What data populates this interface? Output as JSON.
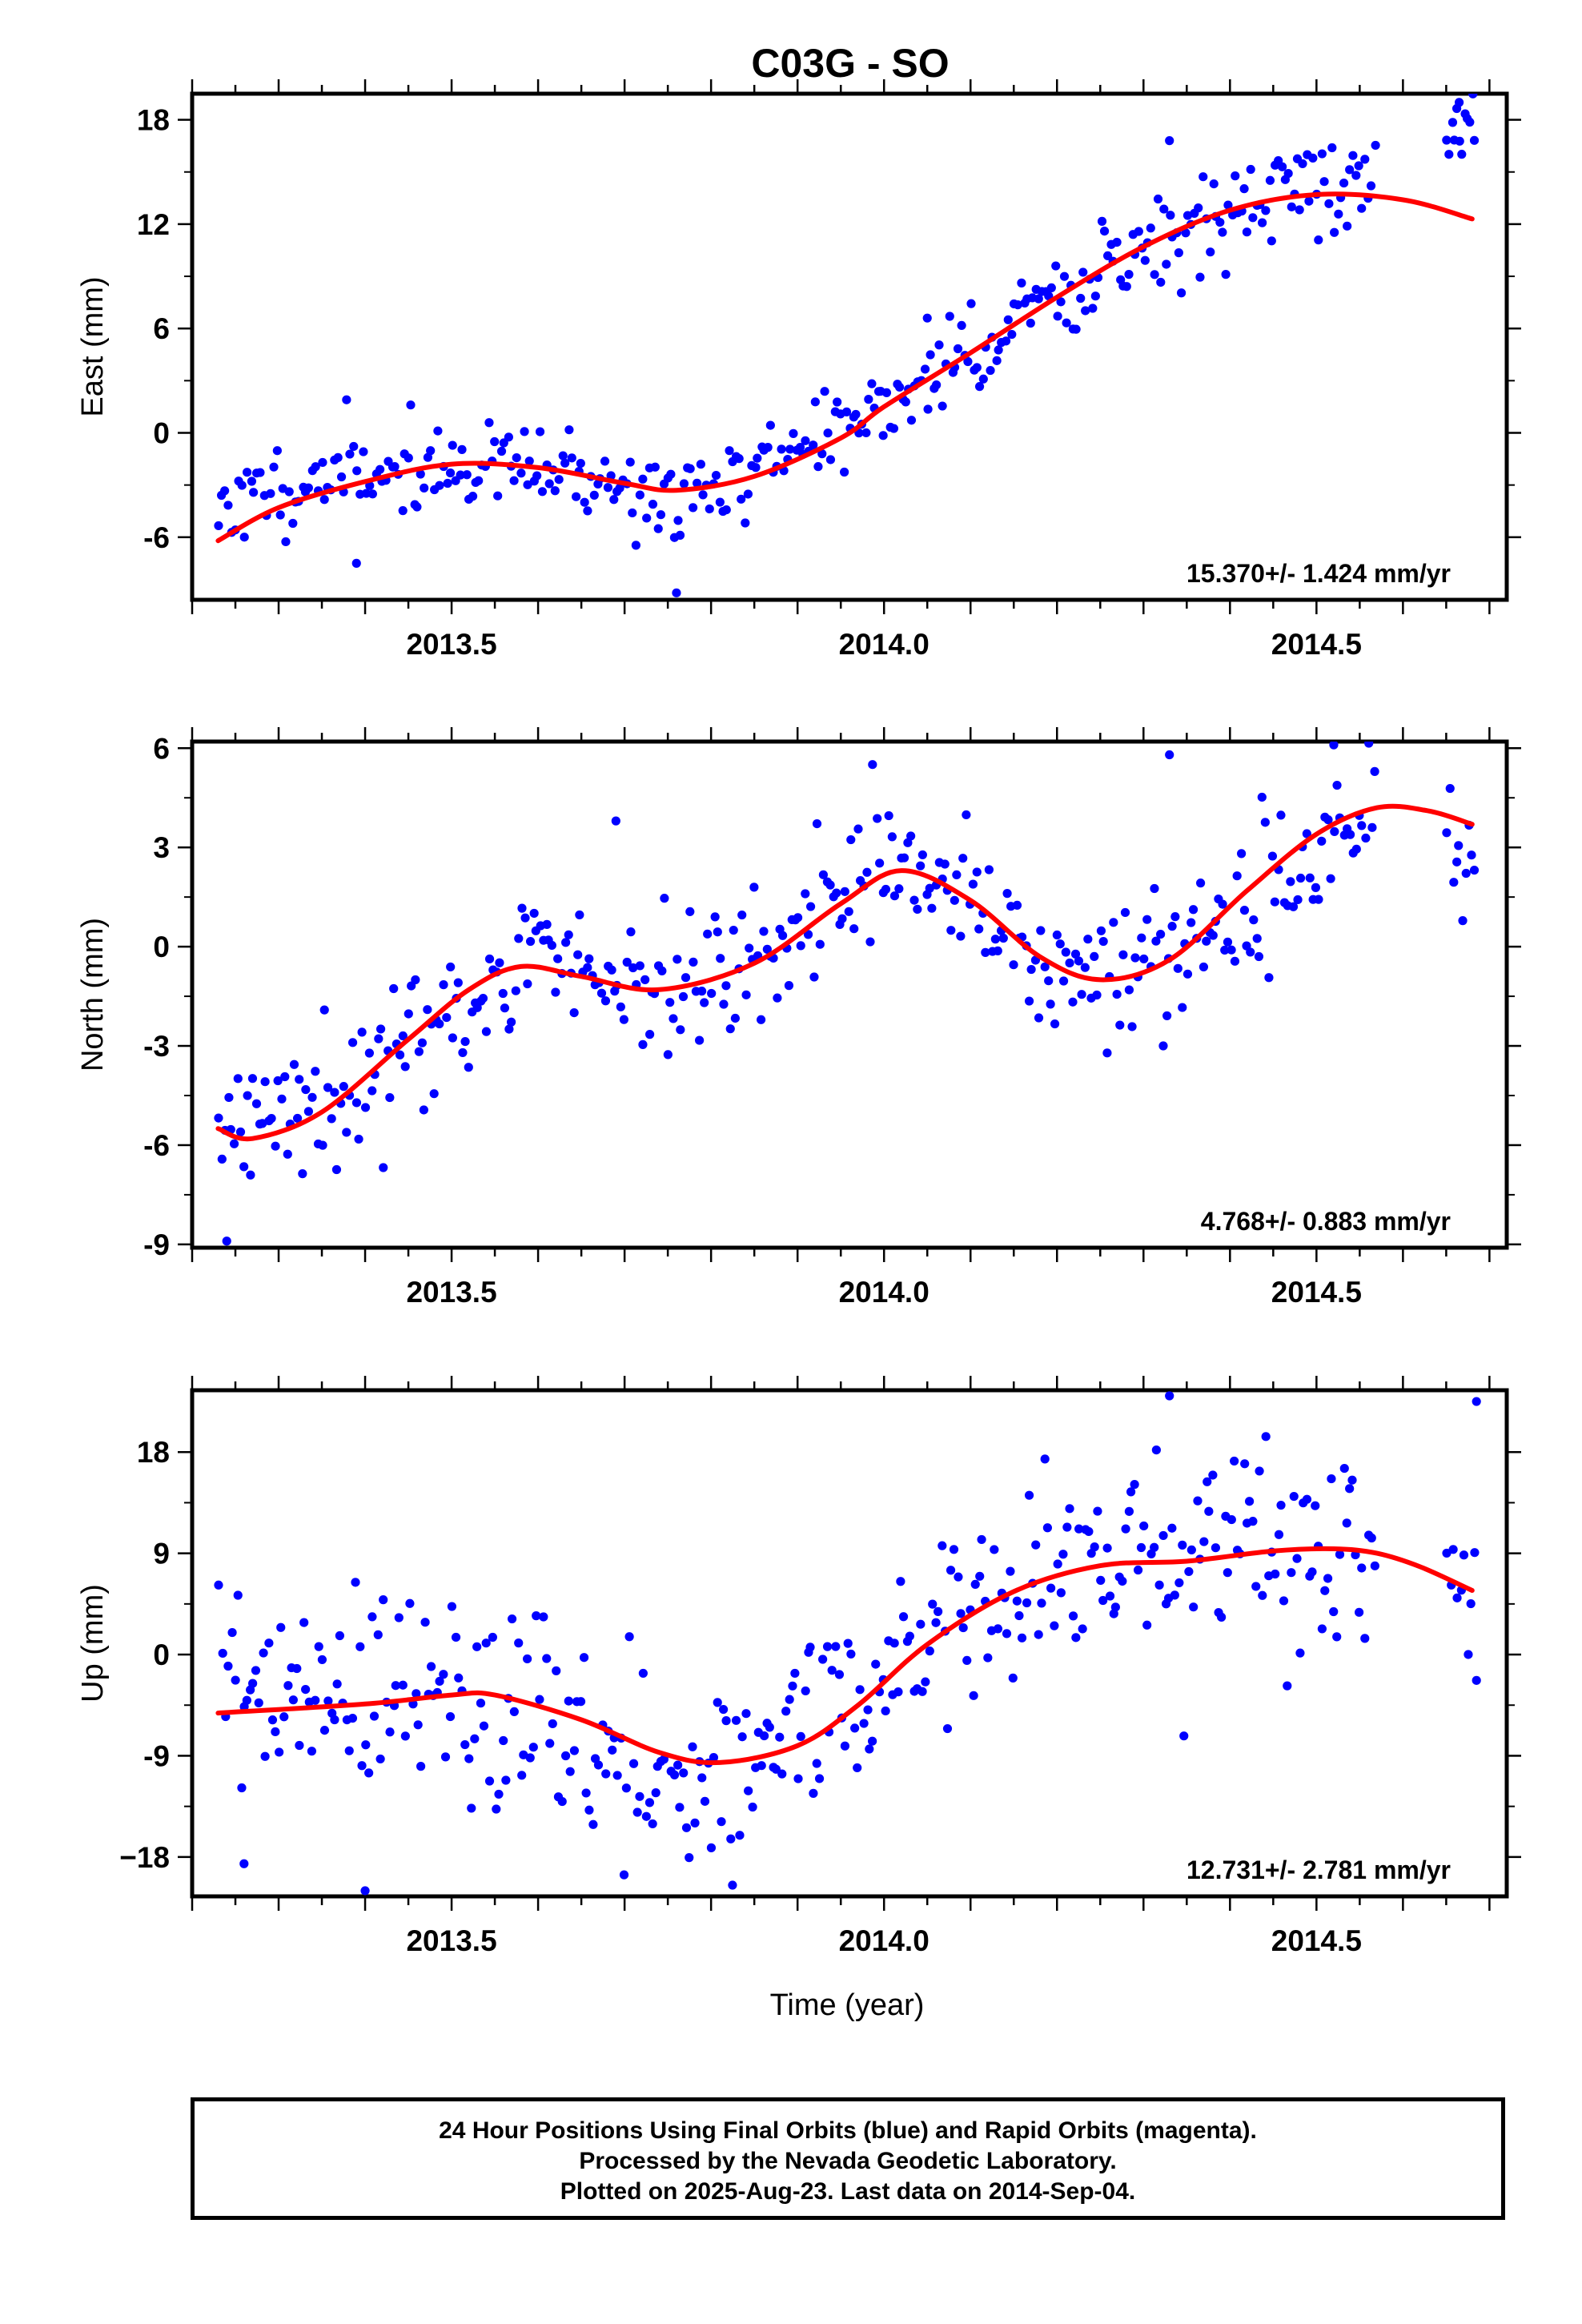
{
  "chart_data": {
    "title": "C03G - SO",
    "x_label": "Time (year)",
    "x_ticks": [
      2013.5,
      2014.0,
      2014.5
    ],
    "x_tick_labels": [
      "2013.5",
      "2014.0",
      "2014.5"
    ],
    "x_range": [
      2013.2,
      2014.72
    ],
    "series_colors": {
      "data": "#0000ff",
      "model": "#ff0000"
    },
    "panels": [
      {
        "name": "east",
        "type": "scatter",
        "ylabel": "East (mm)",
        "ylim": [
          -9.6,
          19.5
        ],
        "y_ticks": [
          -6,
          0,
          6,
          12,
          18
        ],
        "y_tick_labels": [
          "-6",
          "0",
          "6",
          "12",
          "18"
        ],
        "rate_label": "15.370+/- 1.424 mm/yr",
        "model_curve": [
          [
            2013.23,
            -6.2
          ],
          [
            2013.3,
            -4.3
          ],
          [
            2013.4,
            -2.8
          ],
          [
            2013.5,
            -1.8
          ],
          [
            2013.6,
            -2.0
          ],
          [
            2013.7,
            -2.9
          ],
          [
            2013.76,
            -3.3
          ],
          [
            2013.85,
            -2.5
          ],
          [
            2013.95,
            -0.3
          ],
          [
            2014.0,
            1.5
          ],
          [
            2014.1,
            4.6
          ],
          [
            2014.2,
            7.8
          ],
          [
            2014.3,
            10.7
          ],
          [
            2014.4,
            12.8
          ],
          [
            2014.5,
            13.7
          ],
          [
            2014.6,
            13.4
          ],
          [
            2014.68,
            12.3
          ]
        ],
        "segments": [
          {
            "x0": 2013.23,
            "x1": 2013.92,
            "n": 186,
            "trend": [
              [
                2013.23,
                -4.2
              ],
              [
                2013.4,
                -2.1
              ],
              [
                2013.55,
                -2.0
              ],
              [
                2013.65,
                -2.5
              ],
              [
                2013.76,
                -4.1
              ],
              [
                2013.85,
                -2.2
              ],
              [
                2013.92,
                -0.5
              ]
            ],
            "noise": 1.2,
            "seed": 11
          },
          {
            "x0": 2013.92,
            "x1": 2014.57,
            "n": 181,
            "trend": [
              [
                2013.92,
                -0.3
              ],
              [
                2014.0,
                1.5
              ],
              [
                2014.2,
                7.5
              ],
              [
                2014.4,
                12.7
              ],
              [
                2014.57,
                15.0
              ]
            ],
            "noise": 1.5,
            "seed": 12
          },
          {
            "x0": 2014.65,
            "x1": 2014.685,
            "n": 12,
            "trend": [
              [
                2014.65,
                17.0
              ],
              [
                2014.685,
                18.0
              ]
            ],
            "noise": 0.8,
            "seed": 13
          }
        ],
        "points": [
          [
            2013.76,
            -9.2
          ],
          [
            2013.39,
            -7.5
          ],
          [
            2014.33,
            16.8
          ],
          [
            2014.05,
            6.6
          ],
          [
            2014.665,
            19.0
          ]
        ]
      },
      {
        "name": "north",
        "type": "scatter",
        "ylabel": "North (mm)",
        "ylim": [
          -9.1,
          6.2
        ],
        "y_ticks": [
          -9,
          -6,
          -3,
          0,
          3,
          6
        ],
        "y_tick_labels": [
          "-9",
          "-6",
          "-3",
          "0",
          "3",
          "6"
        ],
        "rate_label": "4.768+/- 0.883 mm/yr",
        "model_curve": [
          [
            2013.23,
            -5.5
          ],
          [
            2013.27,
            -5.8
          ],
          [
            2013.35,
            -5.0
          ],
          [
            2013.45,
            -2.8
          ],
          [
            2013.52,
            -1.3
          ],
          [
            2013.58,
            -0.6
          ],
          [
            2013.65,
            -0.9
          ],
          [
            2013.74,
            -1.3
          ],
          [
            2013.85,
            -0.5
          ],
          [
            2013.95,
            1.3
          ],
          [
            2014.02,
            2.3
          ],
          [
            2014.1,
            1.4
          ],
          [
            2014.18,
            -0.3
          ],
          [
            2014.25,
            -1.0
          ],
          [
            2014.33,
            -0.4
          ],
          [
            2014.42,
            1.7
          ],
          [
            2014.5,
            3.4
          ],
          [
            2014.57,
            4.2
          ],
          [
            2014.63,
            4.1
          ],
          [
            2014.68,
            3.7
          ]
        ],
        "segments": [
          {
            "x0": 2013.23,
            "x1": 2014.57,
            "n": 372,
            "trend": [
              [
                2013.23,
                -5.8
              ],
              [
                2013.35,
                -5.0
              ],
              [
                2013.45,
                -2.8
              ],
              [
                2013.58,
                -0.4
              ],
              [
                2013.74,
                -1.3
              ],
              [
                2013.85,
                -0.3
              ],
              [
                2014.0,
                2.6
              ],
              [
                2014.1,
                1.5
              ],
              [
                2014.18,
                -0.5
              ],
              [
                2014.25,
                -1.0
              ],
              [
                2014.33,
                -0.3
              ],
              [
                2014.45,
                1.9
              ],
              [
                2014.57,
                4.4
              ]
            ],
            "noise": 1.05,
            "seed": 21
          },
          {
            "x0": 2014.65,
            "x1": 2014.685,
            "n": 10,
            "trend": [
              [
                2014.65,
                2.0
              ],
              [
                2014.685,
                2.8
              ]
            ],
            "noise": 1.2,
            "seed": 22
          }
        ],
        "points": [
          [
            2013.24,
            -8.9
          ],
          [
            2013.69,
            3.8
          ],
          [
            2014.33,
            5.8
          ],
          [
            2014.52,
            6.1
          ]
        ]
      },
      {
        "name": "up",
        "type": "scatter",
        "ylabel": "Up (mm)",
        "ylim": [
          -21.5,
          23.5
        ],
        "y_ticks": [
          -18,
          -9,
          0,
          9,
          18
        ],
        "y_tick_labels": [
          "−18",
          "-9",
          "0",
          "9",
          "18"
        ],
        "rate_label": "12.731+/- 2.781 mm/yr",
        "model_curve": [
          [
            2013.23,
            -5.2
          ],
          [
            2013.4,
            -4.4
          ],
          [
            2013.5,
            -3.6
          ],
          [
            2013.55,
            -3.6
          ],
          [
            2013.65,
            -5.8
          ],
          [
            2013.74,
            -8.7
          ],
          [
            2013.81,
            -9.6
          ],
          [
            2013.9,
            -8.1
          ],
          [
            2013.97,
            -4.5
          ],
          [
            2014.05,
            0.9
          ],
          [
            2014.15,
            5.6
          ],
          [
            2014.25,
            7.9
          ],
          [
            2014.35,
            8.3
          ],
          [
            2014.45,
            9.2
          ],
          [
            2014.52,
            9.4
          ],
          [
            2014.57,
            9.0
          ],
          [
            2014.62,
            7.8
          ],
          [
            2014.68,
            5.7
          ]
        ],
        "segments": [
          {
            "x0": 2013.23,
            "x1": 2014.57,
            "n": 372,
            "trend": [
              [
                2013.23,
                -3.5
              ],
              [
                2013.5,
                -3.0
              ],
              [
                2013.6,
                -6.5
              ],
              [
                2013.75,
                -10.5
              ],
              [
                2013.88,
                -10.0
              ],
              [
                2013.97,
                -3.0
              ],
              [
                2014.05,
                1.5
              ],
              [
                2014.2,
                7.5
              ],
              [
                2014.4,
                9.0
              ],
              [
                2014.57,
                9.3
              ]
            ],
            "noise": 4.6,
            "seed": 31
          },
          {
            "x0": 2014.65,
            "x1": 2014.685,
            "n": 9,
            "trend": [
              [
                2014.65,
                10.0
              ],
              [
                2014.685,
                6.0
              ]
            ],
            "noise": 4.0,
            "seed": 32
          }
        ],
        "points": [
          [
            2013.4,
            -21.0
          ],
          [
            2013.26,
            -18.6
          ],
          [
            2014.33,
            23.0
          ],
          [
            2014.685,
            22.5
          ],
          [
            2014.685,
            -2.3
          ]
        ]
      }
    ]
  },
  "footer": {
    "line1": "24 Hour Positions Using Final Orbits (blue) and Rapid Orbits (magenta).",
    "line2": "Processed by the Nevada Geodetic Laboratory.",
    "line3": "Plotted on 2025-Aug-23. Last data on 2014-Sep-04."
  }
}
